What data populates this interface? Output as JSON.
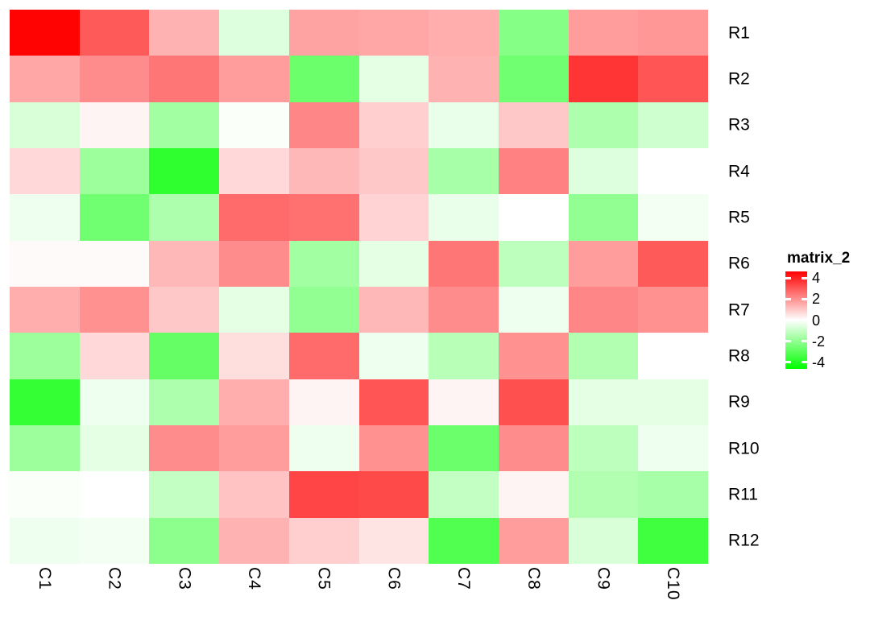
{
  "chart_data": {
    "type": "heatmap",
    "legend_title": "matrix_2",
    "legend_position": "right",
    "rows": [
      "R1",
      "R2",
      "R3",
      "R4",
      "R5",
      "R6",
      "R7",
      "R8",
      "R9",
      "R10",
      "R11",
      "R12"
    ],
    "columns": [
      "C1",
      "C2",
      "C3",
      "C4",
      "C5",
      "C6",
      "C7",
      "C8",
      "C9",
      "C10"
    ],
    "values": [
      [
        4.6,
        3.0,
        1.4,
        -0.6,
        1.7,
        1.6,
        1.5,
        -2.2,
        1.8,
        1.9
      ],
      [
        1.6,
        2.1,
        2.5,
        1.8,
        -2.7,
        -0.5,
        1.4,
        -2.6,
        3.7,
        3.1
      ],
      [
        -0.7,
        0.2,
        -1.7,
        -0.1,
        2.2,
        0.9,
        -0.4,
        1.0,
        -1.5,
        -0.9
      ],
      [
        0.7,
        -1.8,
        -3.8,
        0.7,
        1.3,
        1.0,
        -1.6,
        2.3,
        -0.6,
        0.0
      ],
      [
        -0.3,
        -2.6,
        -1.5,
        2.7,
        2.6,
        0.8,
        -0.4,
        0.0,
        -2.0,
        -0.2
      ],
      [
        0.1,
        0.1,
        1.3,
        2.1,
        -1.7,
        -0.5,
        2.5,
        -1.2,
        1.8,
        3.0
      ],
      [
        1.5,
        2.0,
        1.0,
        -0.5,
        -2.0,
        1.3,
        2.1,
        -0.3,
        2.2,
        2.0
      ],
      [
        -1.8,
        0.7,
        -2.8,
        0.6,
        2.7,
        -0.3,
        -1.3,
        2.0,
        -1.4,
        0.0
      ],
      [
        -3.7,
        -0.3,
        -1.5,
        1.5,
        0.2,
        3.1,
        0.2,
        3.2,
        -0.5,
        -0.5
      ],
      [
        -1.8,
        -0.5,
        2.1,
        1.8,
        -0.3,
        2.0,
        -2.7,
        2.1,
        -1.2,
        -0.3
      ],
      [
        -0.1,
        0.0,
        -1.1,
        1.1,
        3.4,
        3.3,
        -1.1,
        0.2,
        -1.4,
        -1.6
      ],
      [
        -0.3,
        -0.2,
        -2.1,
        1.4,
        0.9,
        0.5,
        -3.2,
        1.8,
        -0.7,
        -3.5
      ]
    ],
    "color_scale": {
      "min": -4.65,
      "mid": 0,
      "max": 4.65,
      "min_color": "#00FF00",
      "mid_color": "#FFFFFF",
      "max_color": "#FF0000",
      "ticks": [
        4,
        2,
        0,
        -2,
        -4
      ]
    },
    "grid": false,
    "xlabel": "",
    "ylabel": "",
    "title": ""
  }
}
